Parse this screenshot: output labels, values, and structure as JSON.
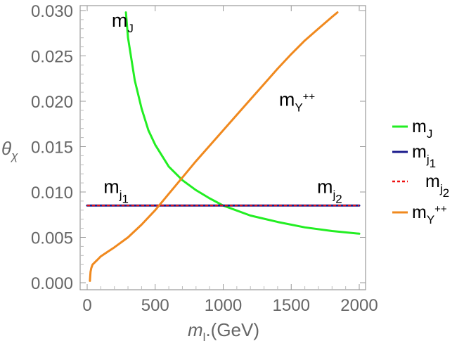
{
  "chart_data": {
    "type": "line",
    "title": "",
    "xlabel": {
      "main": "m",
      "sub": "l",
      "suffix": ".(GeV)"
    },
    "ylabel": {
      "main": "θ",
      "sub": "χ"
    },
    "xlim": [
      0,
      2000
    ],
    "ylim": [
      0,
      0.03
    ],
    "xticks": [
      0,
      500,
      1000,
      1500,
      2000
    ],
    "yticks": [
      0.0,
      0.005,
      0.01,
      0.015,
      0.02,
      0.025,
      0.03
    ],
    "xtick_labels": [
      "0",
      "500",
      "1000",
      "1500",
      "2000"
    ],
    "ytick_labels": [
      "0.000",
      "0.005",
      "0.010",
      "0.015",
      "0.020",
      "0.025",
      "0.030"
    ],
    "legend_position": "right",
    "series": [
      {
        "name": "m_J",
        "legend": {
          "main": "m",
          "sub": "J",
          "sup": ""
        },
        "color": "#22ee22",
        "style": "solid",
        "x": [
          285,
          300,
          350,
          400,
          450,
          500,
          600,
          700,
          800,
          900,
          1000,
          1200,
          1400,
          1600,
          1800,
          2000
        ],
        "y": [
          0.0298,
          0.027,
          0.0223,
          0.0192,
          0.0168,
          0.0152,
          0.0128,
          0.0113,
          0.0102,
          0.0093,
          0.0085,
          0.0074,
          0.0067,
          0.0061,
          0.0057,
          0.0054
        ]
      },
      {
        "name": "m_j1",
        "legend": {
          "main": "m",
          "sub": "j",
          "subsub": "1",
          "sup": ""
        },
        "color": "#1a1a8c",
        "style": "solid",
        "x": [
          0,
          2000
        ],
        "y": [
          0.0085,
          0.0085
        ]
      },
      {
        "name": "m_j2",
        "legend": {
          "main": "m",
          "sub": "j",
          "subsub": "2",
          "sup": ""
        },
        "color": "#ee1111",
        "style": "dashed",
        "x": [
          0,
          2000
        ],
        "y": [
          0.0085,
          0.0085
        ]
      },
      {
        "name": "m_Y++",
        "legend": {
          "main": "m",
          "sub": "Y",
          "sup": "++"
        },
        "color": "#f0891e",
        "style": "solid",
        "x": [
          20,
          22,
          25,
          30,
          40,
          60,
          80,
          100,
          150,
          200,
          300,
          400,
          500,
          600,
          700,
          800,
          900,
          1000,
          1100,
          1200,
          1300,
          1400,
          1500,
          1600,
          1700,
          1800,
          1840
        ],
        "y": [
          0.0002,
          0.0007,
          0.0012,
          0.0016,
          0.002,
          0.0023,
          0.0026,
          0.0029,
          0.0034,
          0.0039,
          0.005,
          0.0064,
          0.008,
          0.0098,
          0.0116,
          0.0134,
          0.0151,
          0.0168,
          0.0185,
          0.0202,
          0.0219,
          0.0236,
          0.0252,
          0.0267,
          0.028,
          0.0293,
          0.0298
        ]
      }
    ],
    "annotations": [
      {
        "id": "J",
        "text": {
          "main": "m",
          "sub": "J",
          "sup": ""
        },
        "x": 180,
        "y": 0.0282
      },
      {
        "id": "Y",
        "text": {
          "main": "m",
          "sub": "Y",
          "sup": "++"
        },
        "x": 1410,
        "y": 0.0195
      },
      {
        "id": "j1",
        "text": {
          "main": "m",
          "sub": "j",
          "subsub": "1",
          "sup": ""
        },
        "x": 120,
        "y": 0.0099
      },
      {
        "id": "j2",
        "text": {
          "main": "m",
          "sub": "j",
          "subsub": "2",
          "sup": ""
        },
        "x": 1690,
        "y": 0.0099
      }
    ]
  }
}
